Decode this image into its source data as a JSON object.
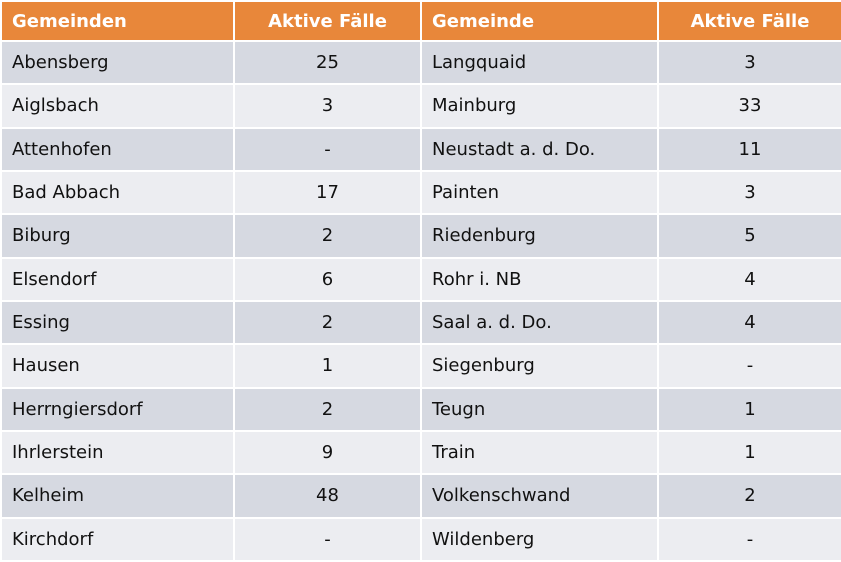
{
  "table": {
    "header": [
      "Gemeinden",
      "Aktive Fälle",
      "Gemeinde",
      "Aktive Fälle"
    ],
    "rows": [
      [
        "Abensberg",
        "25",
        "Langquaid",
        "3"
      ],
      [
        "Aiglsbach",
        "3",
        "Mainburg",
        "33"
      ],
      [
        "Attenhofen",
        "-",
        "Neustadt a. d. Do.",
        "11"
      ],
      [
        "Bad Abbach",
        "17",
        "Painten",
        "3"
      ],
      [
        "Biburg",
        "2",
        "Riedenburg",
        "5"
      ],
      [
        "Elsendorf",
        "6",
        "Rohr i. NB",
        "4"
      ],
      [
        "Essing",
        "2",
        "Saal a. d. Do.",
        "4"
      ],
      [
        "Hausen",
        "1",
        "Siegenburg",
        "-"
      ],
      [
        "Herrngiersdorf",
        "2",
        "Teugn",
        "1"
      ],
      [
        "Ihrlerstein",
        "9",
        "Train",
        "1"
      ],
      [
        "Kelheim",
        "48",
        "Volkenschwand",
        "2"
      ],
      [
        "Kirchdorf",
        "-",
        "Wildenberg",
        "-"
      ]
    ]
  }
}
